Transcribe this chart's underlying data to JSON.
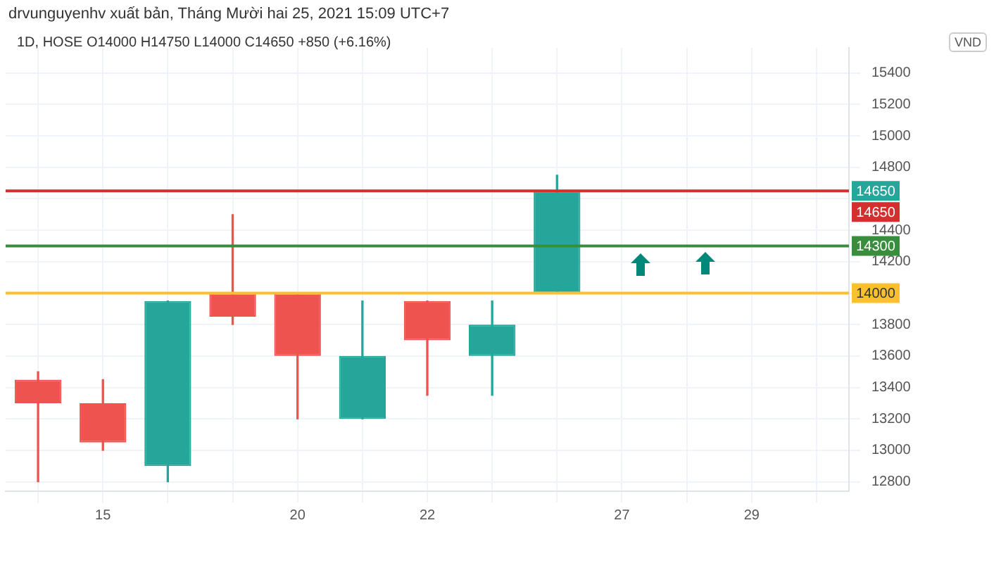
{
  "chart_data": {
    "type": "candlestick",
    "title": "1D, HOSE  O14000  H14750  L14000  C14650  +850 (+6.16%)",
    "subtitle": "drvunguyenhv xuất bản, Tháng Mười hai 25, 2021 15:09 UTC+7",
    "categories": [
      null,
      "15",
      null,
      null,
      "20",
      null,
      "22",
      null,
      null,
      "27",
      null,
      "29",
      null
    ],
    "ohlc": [
      [
        13450,
        13500,
        12800,
        13300
      ],
      [
        13300,
        13450,
        13000,
        13050
      ],
      [
        12900,
        13950,
        12800,
        13950
      ],
      [
        14000,
        14500,
        13800,
        13850
      ],
      [
        14000,
        14000,
        13200,
        13600
      ],
      [
        13200,
        13950,
        13200,
        13600
      ],
      [
        13950,
        13950,
        13350,
        13700
      ],
      [
        13600,
        13950,
        13350,
        13800
      ],
      [
        14000,
        14750,
        14000,
        14650
      ],
      null,
      null,
      null,
      null
    ],
    "colors": [
      "#ef5350",
      "#ef5350",
      "#26a69a",
      "#ef5350",
      "#ef5350",
      "#26a69a",
      "#ef5350",
      "#26a69a",
      "#26a69a",
      null,
      null,
      null,
      null
    ],
    "ylim": [
      12740,
      15560
    ],
    "yticks": [
      12800,
      13000,
      13200,
      13400,
      13600,
      13800,
      {
        "value": 14000,
        "label": null
      },
      14200,
      14400,
      {
        "value": 14600,
        "label": null
      },
      14800,
      15000,
      15200,
      15400
    ],
    "grid": true,
    "ref_lines": [
      {
        "axis": "y",
        "value": 14650,
        "label": "14650",
        "color": "#d32f2f"
      },
      {
        "axis": "y",
        "value": 14300,
        "label": "14300",
        "color": "#388e3c"
      },
      {
        "axis": "y",
        "value": 14000,
        "label": "14000",
        "color": "#fbc02d"
      }
    ],
    "annotations": [
      {
        "text": "14650",
        "y": 14650
      },
      "VND"
    ]
  }
}
